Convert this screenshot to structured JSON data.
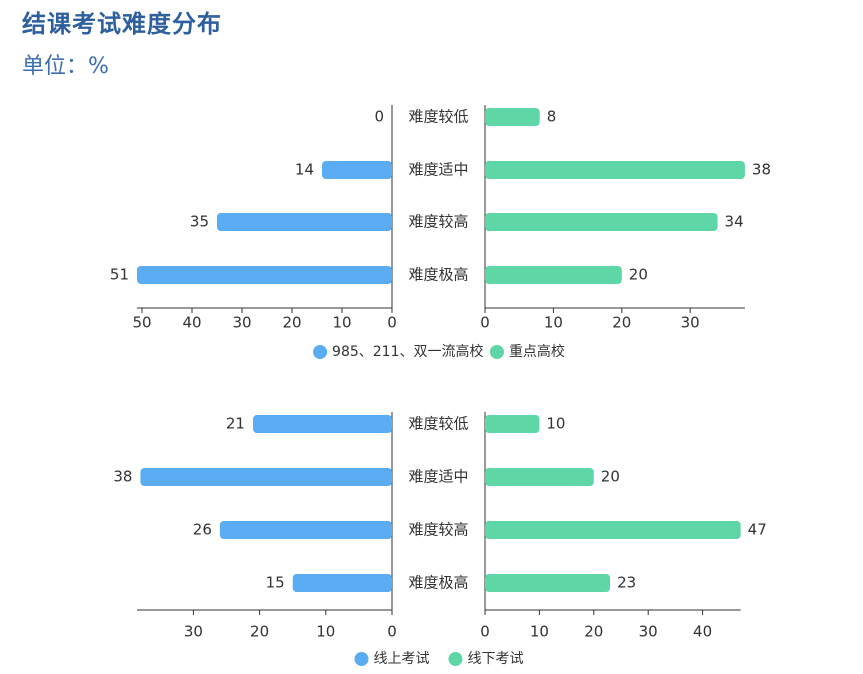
{
  "title": "结课考试难度分布",
  "unit_label": "单位：%",
  "colors": {
    "left": "#5aadf2",
    "right": "#5fd6a6",
    "axis": "#333333"
  },
  "chart_data": [
    {
      "type": "bar",
      "orientation": "horizontal-butterfly",
      "categories": [
        "难度较低",
        "难度适中",
        "难度较高",
        "难度极高"
      ],
      "series": [
        {
          "name": "985、211、双一流高校",
          "values": [
            0,
            14,
            35,
            51
          ],
          "side": "left"
        },
        {
          "name": "重点高校",
          "values": [
            8,
            38,
            34,
            20
          ],
          "side": "right"
        }
      ],
      "left_axis": {
        "range": [
          0,
          50
        ],
        "ticks": [
          0,
          10,
          20,
          30,
          40,
          50
        ]
      },
      "right_axis": {
        "range": [
          0,
          38
        ],
        "ticks": [
          0,
          10,
          20,
          30
        ]
      },
      "legend_position": "bottom-center"
    },
    {
      "type": "bar",
      "orientation": "horizontal-butterfly",
      "categories": [
        "难度较低",
        "难度适中",
        "难度较高",
        "难度极高"
      ],
      "series": [
        {
          "name": "线上考试",
          "values": [
            21,
            38,
            26,
            15
          ],
          "side": "left"
        },
        {
          "name": "线下考试",
          "values": [
            10,
            20,
            47,
            23
          ],
          "side": "right"
        }
      ],
      "left_axis": {
        "range": [
          0,
          38
        ],
        "ticks": [
          0,
          10,
          20,
          30
        ]
      },
      "right_axis": {
        "range": [
          0,
          47
        ],
        "ticks": [
          0,
          10,
          20,
          30,
          40
        ]
      },
      "legend_position": "bottom-center"
    }
  ]
}
